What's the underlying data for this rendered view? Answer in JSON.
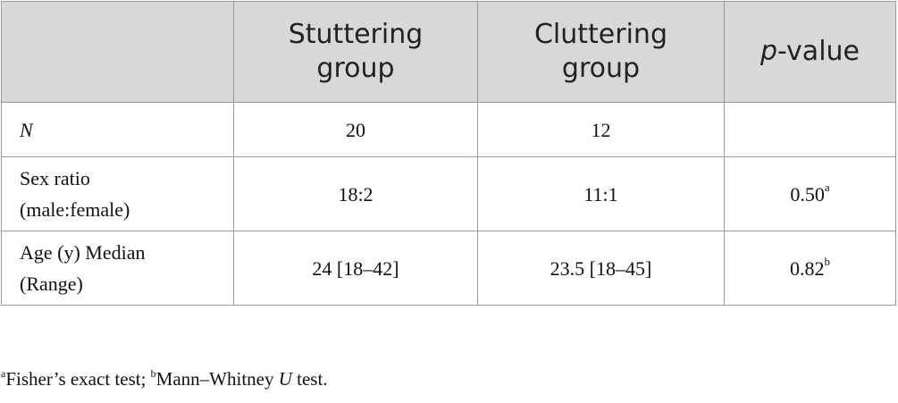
{
  "table": {
    "headers": {
      "blank": "",
      "col1_line1": "Stuttering",
      "col1_line2": "group",
      "col2_line1": "Cluttering",
      "col2_line2": "group",
      "col3_italic": "p",
      "col3_rest": "-value"
    },
    "rows": [
      {
        "label": "N",
        "stuttering": "20",
        "cluttering": "12",
        "p_value": "",
        "p_sup": ""
      },
      {
        "label_line1": "Sex ratio",
        "label_line2": "(male:female)",
        "stuttering": "18:2",
        "cluttering": "11:1",
        "p_value": "0.50",
        "p_sup": "a"
      },
      {
        "label_line1": "Age (y) Median",
        "label_line2": "(Range)",
        "stuttering": "24 [18–42]",
        "cluttering": "23.5 [18–45]",
        "p_value": "0.82",
        "p_sup": "b"
      }
    ]
  },
  "footnote": {
    "sup_a": "a",
    "text_a": "Fisher’s exact test; ",
    "sup_b": "b",
    "text_b_pre": "Mann–Whitney ",
    "text_b_italic": "U",
    "text_b_post": " test."
  }
}
